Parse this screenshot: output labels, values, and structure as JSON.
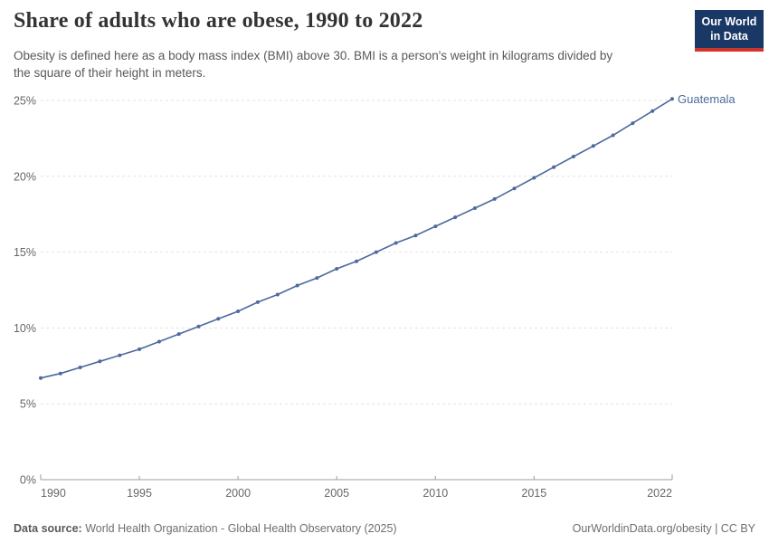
{
  "header": {
    "title": "Share of adults who are obese, 1990 to 2022",
    "subtitle_lines": [
      "Obesity is defined here as a body mass index (BMI) above 30. BMI is a person's weight in kilograms divided by",
      "the square of their height in meters."
    ],
    "logo": {
      "line1": "Our World",
      "line2": "in Data",
      "bg_color": "#1a3866",
      "accent_color": "#d0342c"
    }
  },
  "chart_data": {
    "type": "line",
    "title": "Share of adults who are obese, 1990 to 2022",
    "x": [
      1990,
      1991,
      1992,
      1993,
      1994,
      1995,
      1996,
      1997,
      1998,
      1999,
      2000,
      2001,
      2002,
      2003,
      2004,
      2005,
      2006,
      2007,
      2008,
      2009,
      2010,
      2011,
      2012,
      2013,
      2014,
      2015,
      2016,
      2017,
      2018,
      2019,
      2020,
      2021,
      2022
    ],
    "series": [
      {
        "name": "Guatemala",
        "color": "#4c6a9c",
        "values": [
          6.7,
          7.0,
          7.4,
          7.8,
          8.2,
          8.6,
          9.1,
          9.6,
          10.1,
          10.6,
          11.1,
          11.7,
          12.2,
          12.8,
          13.3,
          13.9,
          14.4,
          15.0,
          15.6,
          16.1,
          16.7,
          17.3,
          17.9,
          18.5,
          19.2,
          19.9,
          20.6,
          21.3,
          22.0,
          22.7,
          23.5,
          24.3,
          25.1
        ]
      }
    ],
    "xlim": [
      1990,
      2022
    ],
    "ylim": [
      0,
      25
    ],
    "x_ticks": [
      1990,
      1995,
      2000,
      2005,
      2010,
      2015,
      2022
    ],
    "y_ticks": [
      0,
      5,
      10,
      15,
      20,
      25
    ],
    "y_tick_suffix": "%",
    "xlabel": "",
    "ylabel": "",
    "grid": "horizontal-dashed",
    "legend_position": "label-at-line-end",
    "marker": "circle"
  },
  "footer": {
    "datasource_label": "Data source:",
    "datasource_text": "World Health Organization - Global Health Observatory (2025)",
    "link_text": "OurWorldinData.org/obesity | CC BY"
  },
  "colors": {
    "line": "#4c6a9c",
    "grid": "#e2e2e2",
    "axis": "#9c9c9c",
    "tick_label": "#666666"
  }
}
